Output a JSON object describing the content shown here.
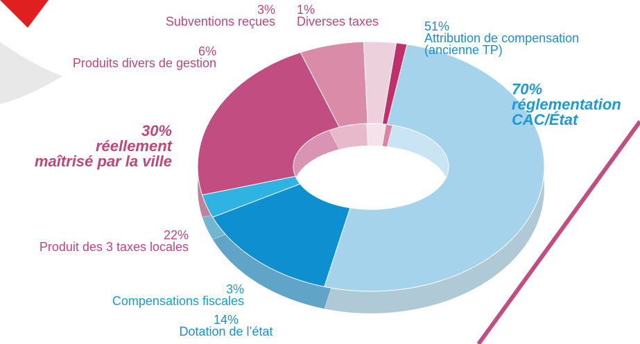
{
  "chart_data": {
    "type": "donut",
    "categories": [
      "Attribution de compensation (ancienne TP)",
      "Dotation de l’état",
      "Compensations fiscales",
      "Produit des 3 taxes locales",
      "Produits divers de gestion",
      "Subventions reçues",
      "Diverses taxes"
    ],
    "values": [
      51,
      14,
      3,
      22,
      6,
      3,
      1
    ],
    "value_labels": [
      "51%",
      "14%",
      "3%",
      "22%",
      "6%",
      "3%",
      "1%"
    ],
    "colors": [
      "#a5d3ec",
      "#0e8fd0",
      "#2fb3e3",
      "#c24d80",
      "#d98ba8",
      "#ecd0dc",
      "#c0306a"
    ],
    "annotations": [
      [
        "70%",
        "réglementation",
        "CAC/État"
      ],
      [
        "30%",
        "réellement",
        "maîtrisé par la ville"
      ]
    ]
  }
}
